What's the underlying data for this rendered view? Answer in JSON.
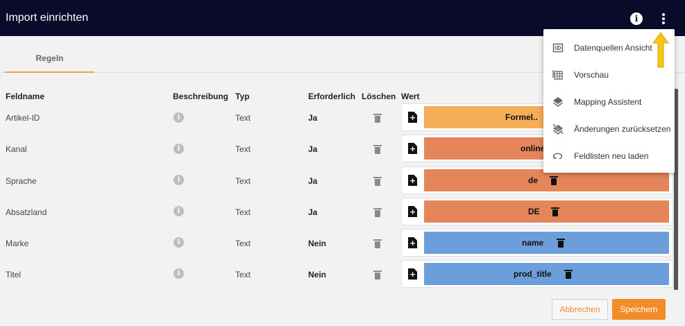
{
  "header": {
    "title": "Import einrichten",
    "info_icon": "info-circle-icon",
    "more_icon": "more-vert-icon"
  },
  "tabs": [
    {
      "label": "Regeln"
    }
  ],
  "table": {
    "columns": [
      "Feldname",
      "Beschreibung",
      "Typ",
      "Erforderlich",
      "Löschen",
      "Wert"
    ],
    "rows": [
      {
        "feldname": "Artikel-ID",
        "typ": "Text",
        "erforderlich": "Ja",
        "wert": "Formel..",
        "wert_color": "#f6ad58"
      },
      {
        "feldname": "Kanal",
        "typ": "Text",
        "erforderlich": "Ja",
        "wert": "online",
        "wert_color": "#e4855a"
      },
      {
        "feldname": "Sprache",
        "typ": "Text",
        "erforderlich": "Ja",
        "wert": "de",
        "wert_color": "#e4855a"
      },
      {
        "feldname": "Absatzland",
        "typ": "Text",
        "erforderlich": "Ja",
        "wert": "DE",
        "wert_color": "#e4855a"
      },
      {
        "feldname": "Marke",
        "typ": "Text",
        "erforderlich": "Nein",
        "wert": "name",
        "wert_color": "#6c9edc"
      },
      {
        "feldname": "Titel",
        "typ": "Text",
        "erforderlich": "Nein",
        "wert": "prod_title",
        "wert_color": "#6c9edc"
      }
    ]
  },
  "menu": {
    "items": [
      {
        "label": "Datenquellen Ansicht",
        "icon": "eye-box-icon"
      },
      {
        "label": "Vorschau",
        "icon": "table-icon"
      },
      {
        "label": "Mapping Assistent",
        "icon": "layers-icon"
      },
      {
        "label": "Änderungen zurücksetzen",
        "icon": "layers-off-icon"
      },
      {
        "label": "Feldlisten neu laden",
        "icon": "reload-icon"
      }
    ]
  },
  "footer": {
    "cancel_label": "Abbrechen",
    "save_label": "Speichern"
  },
  "colors": {
    "accent": "#f28c28",
    "topbar": "#0a0a2a",
    "annotation_arrow": "#f5c518"
  }
}
